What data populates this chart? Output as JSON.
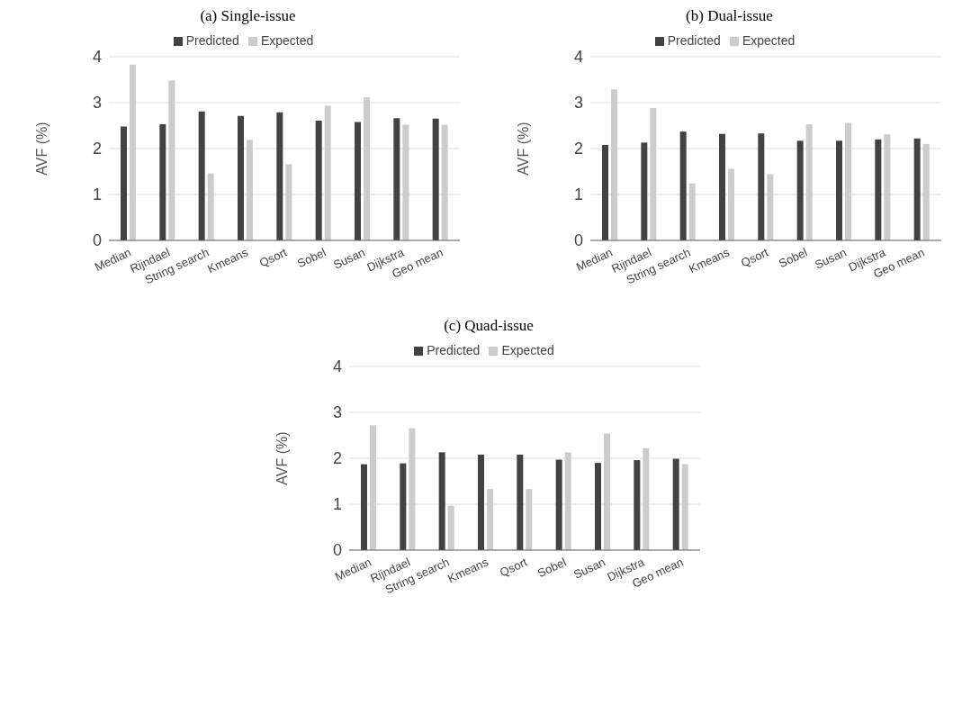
{
  "chart_data": [
    {
      "type": "bar",
      "title": "(a) Single-issue",
      "ylabel": "AVF (%)",
      "categories": [
        "Median",
        "Rijndael",
        "String search",
        "Kmeans",
        "Qsort",
        "Sobel",
        "Susan",
        "Dijkstra",
        "Geo mean"
      ],
      "series": [
        {
          "name": "Predicted",
          "color": "#424242",
          "values": [
            2.48,
            2.53,
            2.81,
            2.71,
            2.79,
            2.61,
            2.58,
            2.66,
            2.65
          ]
        },
        {
          "name": "Expected",
          "color": "#cccccc",
          "values": [
            3.83,
            3.48,
            1.46,
            2.19,
            1.66,
            2.93,
            3.12,
            2.52,
            2.52
          ]
        }
      ],
      "ylim": [
        0,
        4
      ],
      "yticks": [
        0,
        1,
        2,
        3,
        4
      ],
      "grid": "y",
      "legend": "top"
    },
    {
      "type": "bar",
      "title": "(b) Dual-issue",
      "ylabel": "AVF (%)",
      "categories": [
        "Median",
        "Rijndael",
        "String search",
        "Kmeans",
        "Qsort",
        "Sobel",
        "Susan",
        "Dijkstra",
        "Geo mean"
      ],
      "series": [
        {
          "name": "Predicted",
          "color": "#424242",
          "values": [
            2.08,
            2.13,
            2.37,
            2.32,
            2.33,
            2.17,
            2.17,
            2.2,
            2.22
          ]
        },
        {
          "name": "Expected",
          "color": "#cccccc",
          "values": [
            3.29,
            2.88,
            1.24,
            1.56,
            1.44,
            2.53,
            2.56,
            2.31,
            2.1
          ]
        }
      ],
      "ylim": [
        0,
        4
      ],
      "yticks": [
        0,
        1,
        2,
        3,
        4
      ],
      "grid": "y",
      "legend": "top"
    },
    {
      "type": "bar",
      "title": "(c) Quad-issue",
      "ylabel": "AVF (%)",
      "categories": [
        "Median",
        "Rijndael",
        "String search",
        "Kmeans",
        "Qsort",
        "Sobel",
        "Susan",
        "Dijkstra",
        "Geo mean"
      ],
      "series": [
        {
          "name": "Predicted",
          "color": "#424242",
          "values": [
            1.87,
            1.89,
            2.13,
            2.08,
            2.08,
            1.97,
            1.9,
            1.96,
            1.99
          ]
        },
        {
          "name": "Expected",
          "color": "#cccccc",
          "values": [
            2.72,
            2.65,
            0.97,
            1.33,
            1.33,
            2.13,
            2.54,
            2.22,
            1.87
          ]
        }
      ],
      "ylim": [
        0,
        4
      ],
      "yticks": [
        0,
        1,
        2,
        3,
        4
      ],
      "grid": "y",
      "legend": "top"
    }
  ]
}
